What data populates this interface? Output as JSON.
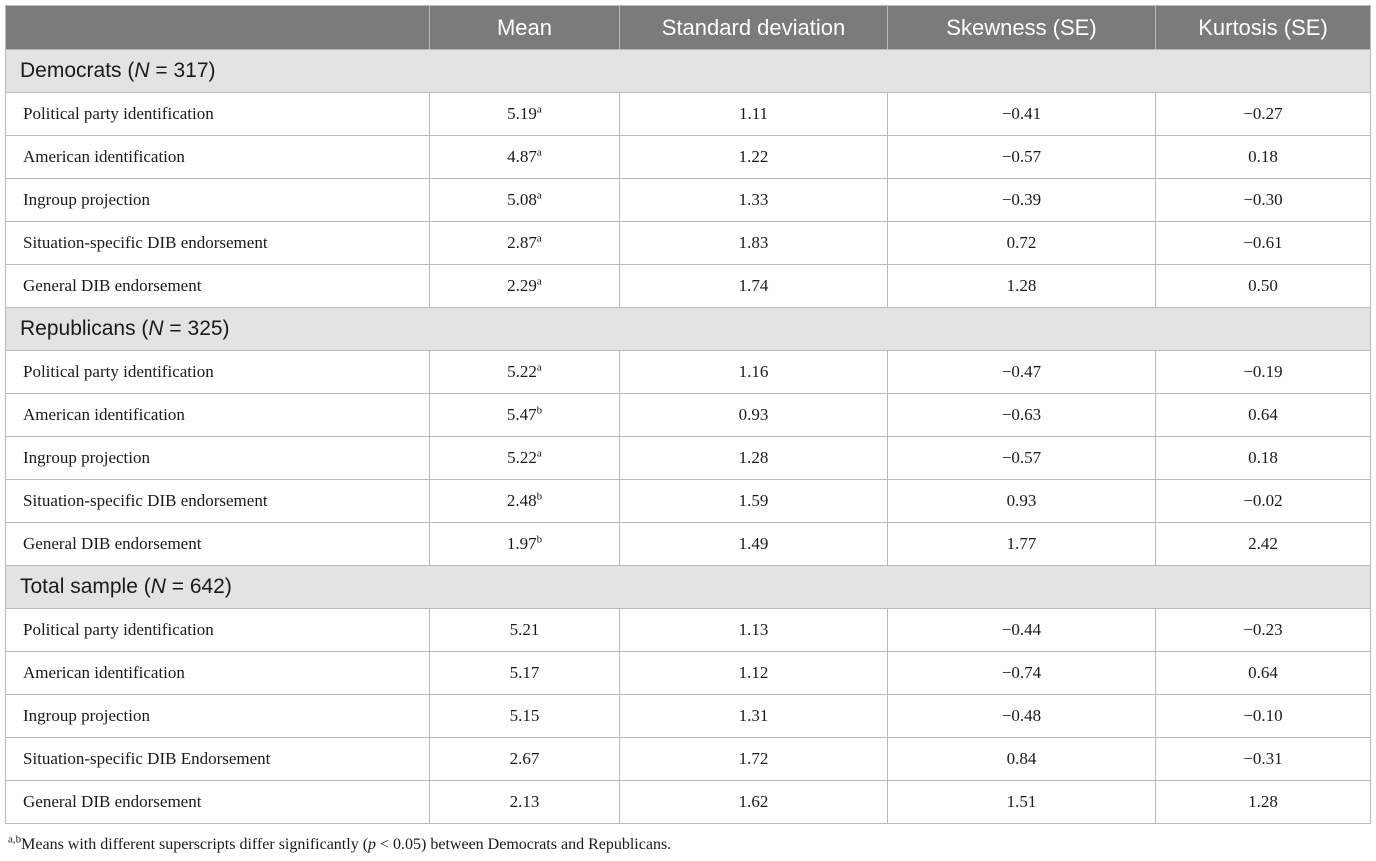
{
  "table": {
    "headers": [
      "",
      "Mean",
      "Standard deviation",
      "Skewness (SE)",
      "Kurtosis (SE)"
    ],
    "groups": [
      {
        "name": "Democrats (",
        "n_label": "N",
        "n_value": " = 317)",
        "rows": [
          {
            "label": "Political party identification",
            "mean": "5.19",
            "sup": "a",
            "sd": "1.11",
            "skew": "−0.41",
            "kurt": "−0.27"
          },
          {
            "label": "American identification",
            "mean": "4.87",
            "sup": "a",
            "sd": "1.22",
            "skew": "−0.57",
            "kurt": "0.18"
          },
          {
            "label": "Ingroup projection",
            "mean": "5.08",
            "sup": "a",
            "sd": "1.33",
            "skew": "−0.39",
            "kurt": "−0.30"
          },
          {
            "label": "Situation-specific DIB endorsement",
            "mean": "2.87",
            "sup": "a",
            "sd": "1.83",
            "skew": "0.72",
            "kurt": "−0.61"
          },
          {
            "label": "General DIB endorsement",
            "mean": "2.29",
            "sup": "a",
            "sd": "1.74",
            "skew": "1.28",
            "kurt": "0.50"
          }
        ]
      },
      {
        "name": "Republicans (",
        "n_label": "N",
        "n_value": " = 325)",
        "rows": [
          {
            "label": "Political party identification",
            "mean": "5.22",
            "sup": "a",
            "sd": "1.16",
            "skew": "−0.47",
            "kurt": "−0.19"
          },
          {
            "label": "American identification",
            "mean": "5.47",
            "sup": "b",
            "sd": "0.93",
            "skew": "−0.63",
            "kurt": "0.64"
          },
          {
            "label": "Ingroup projection",
            "mean": "5.22",
            "sup": "a",
            "sd": "1.28",
            "skew": "−0.57",
            "kurt": "0.18"
          },
          {
            "label": "Situation-specific DIB endorsement",
            "mean": "2.48",
            "sup": "b",
            "sd": "1.59",
            "skew": "0.93",
            "kurt": "−0.02"
          },
          {
            "label": "General DIB endorsement",
            "mean": "1.97",
            "sup": "b",
            "sd": "1.49",
            "skew": "1.77",
            "kurt": "2.42"
          }
        ]
      },
      {
        "name": "Total sample (",
        "n_label": "N",
        "n_value": " = 642)",
        "rows": [
          {
            "label": "Political party identification",
            "mean": "5.21",
            "sup": "",
            "sd": "1.13",
            "skew": "−0.44",
            "kurt": "−0.23"
          },
          {
            "label": "American identification",
            "mean": "5.17",
            "sup": "",
            "sd": "1.12",
            "skew": "−0.74",
            "kurt": "0.64"
          },
          {
            "label": "Ingroup projection",
            "mean": "5.15",
            "sup": "",
            "sd": "1.31",
            "skew": "−0.48",
            "kurt": "−0.10"
          },
          {
            "label": "Situation-specific DIB Endorsement",
            "mean": "2.67",
            "sup": "",
            "sd": "1.72",
            "skew": "0.84",
            "kurt": "−0.31"
          },
          {
            "label": "General DIB endorsement",
            "mean": "2.13",
            "sup": "",
            "sd": "1.62",
            "skew": "1.51",
            "kurt": "1.28"
          }
        ]
      }
    ]
  },
  "footnote": {
    "sup": "a,b",
    "text_before": "Means with different superscripts differ significantly (",
    "p_label": "p",
    "text_after": " < 0.05) between Democrats and Republicans."
  },
  "colors": {
    "header_bg": "#7b7b7b",
    "group_bg": "#e3e3e3",
    "border": "#b9b9b9"
  }
}
